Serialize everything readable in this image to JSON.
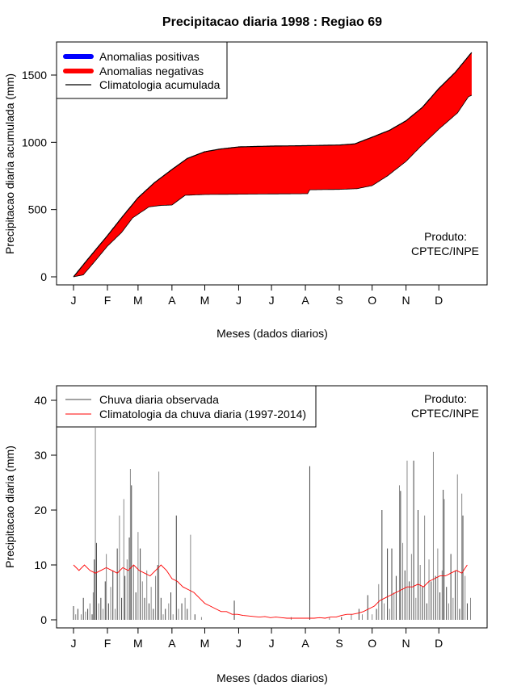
{
  "colors": {
    "anomaly_positive": "#0000ff",
    "anomaly_negative": "#ff0000",
    "climatology_line": "#000000",
    "observed_bars": "#444444",
    "climatology_daily": "#ff0000"
  },
  "chart_data": [
    {
      "type": "area",
      "title": "Precipitacao diaria 1998 : Regiao 69",
      "xlabel": "Meses (dados diarios)",
      "ylabel": "Precipitacao diaria acumulada (mm)",
      "xlim": [
        1,
        365
      ],
      "ylim": [
        0,
        1700
      ],
      "month_labels": [
        "J",
        "F",
        "M",
        "A",
        "M",
        "J",
        "J",
        "A",
        "S",
        "O",
        "N",
        "D"
      ],
      "month_days": [
        1,
        32,
        60,
        91,
        121,
        152,
        182,
        213,
        244,
        274,
        305,
        335
      ],
      "yticks": [
        0,
        500,
        1000,
        1500
      ],
      "ytick_labels": [
        "0",
        "500",
        "1000",
        "1500"
      ],
      "legend": {
        "position": "top-left",
        "entries": [
          "Anomalias positivas",
          "Anomalias negativas",
          "Climatologia acumulada"
        ]
      },
      "annotation": [
        "Produto:",
        "CPTEC/INPE"
      ],
      "climatology_cumulative": {
        "day": [
          1,
          15,
          32,
          46,
          60,
          75,
          91,
          105,
          121,
          135,
          152,
          182,
          213,
          244,
          258,
          274,
          290,
          305,
          320,
          335,
          350,
          365
        ],
        "mm": [
          0,
          140,
          306,
          450,
          588,
          700,
          798,
          880,
          930,
          950,
          966,
          972,
          975,
          980,
          988,
          1038,
          1090,
          1160,
          1260,
          1400,
          1520,
          1668
        ]
      },
      "observed_cumulative": {
        "day": [
          1,
          10,
          21,
          32,
          45,
          55,
          70,
          80,
          91,
          103,
          121,
          150,
          180,
          215,
          217,
          244,
          260,
          274,
          288,
          305,
          318,
          335,
          352,
          362,
          365
        ],
        "mm": [
          0,
          15,
          120,
          228,
          330,
          438,
          520,
          530,
          534,
          606,
          612,
          614,
          616,
          618,
          647,
          650,
          655,
          678,
          750,
          858,
          966,
          1098,
          1218,
          1338,
          1350
        ]
      }
    },
    {
      "type": "bar",
      "xlabel": "Meses (dados diarios)",
      "ylabel": "Precipitacao diaria (mm)",
      "xlim": [
        1,
        365
      ],
      "ylim": [
        0,
        40
      ],
      "yticks": [
        0,
        10,
        20,
        30,
        40
      ],
      "ytick_labels": [
        "0",
        "10",
        "20",
        "30",
        "40"
      ],
      "month_labels": [
        "J",
        "F",
        "M",
        "A",
        "M",
        "J",
        "J",
        "A",
        "S",
        "O",
        "N",
        "D"
      ],
      "month_days": [
        1,
        32,
        60,
        91,
        121,
        152,
        182,
        213,
        244,
        274,
        305,
        335
      ],
      "legend": {
        "position": "top-left",
        "entries": [
          "Chuva diaria observada",
          "Climatologia da chuva diaria (1997-2014)"
        ]
      },
      "annotation": [
        "Produto:",
        "CPTEC/INPE"
      ],
      "observed_daily": [
        [
          1,
          2.5
        ],
        [
          3,
          1
        ],
        [
          5,
          2
        ],
        [
          8,
          1
        ],
        [
          10,
          4
        ],
        [
          12,
          1.5
        ],
        [
          14,
          2
        ],
        [
          16,
          3
        ],
        [
          18,
          1
        ],
        [
          19,
          5
        ],
        [
          20,
          11
        ],
        [
          21,
          35
        ],
        [
          22,
          14
        ],
        [
          24,
          3
        ],
        [
          26,
          4
        ],
        [
          28,
          2
        ],
        [
          30,
          7
        ],
        [
          31,
          12
        ],
        [
          33,
          3
        ],
        [
          35,
          6
        ],
        [
          37,
          9
        ],
        [
          39,
          2
        ],
        [
          41,
          13
        ],
        [
          43,
          19
        ],
        [
          45,
          4
        ],
        [
          47,
          22
        ],
        [
          48,
          8
        ],
        [
          50,
          11
        ],
        [
          52,
          15
        ],
        [
          53,
          27.5
        ],
        [
          54,
          24.5
        ],
        [
          56,
          10
        ],
        [
          58,
          5
        ],
        [
          60,
          16
        ],
        [
          62,
          13
        ],
        [
          64,
          7
        ],
        [
          66,
          4
        ],
        [
          68,
          9
        ],
        [
          70,
          3
        ],
        [
          72,
          6
        ],
        [
          74,
          2
        ],
        [
          76,
          8
        ],
        [
          78,
          10
        ],
        [
          79,
          27
        ],
        [
          81,
          4
        ],
        [
          83,
          1
        ],
        [
          85,
          2
        ],
        [
          88,
          3
        ],
        [
          90,
          5
        ],
        [
          92,
          1
        ],
        [
          95,
          19
        ],
        [
          97,
          2
        ],
        [
          100,
          3
        ],
        [
          103,
          4
        ],
        [
          105,
          2
        ],
        [
          108,
          15.5
        ],
        [
          112,
          1
        ],
        [
          118,
          0.5
        ],
        [
          148,
          3.5
        ],
        [
          200,
          0.5
        ],
        [
          217,
          28
        ],
        [
          235,
          0.5
        ],
        [
          246,
          0.5
        ],
        [
          255,
          1
        ],
        [
          262,
          2
        ],
        [
          265,
          1
        ],
        [
          270,
          4.5
        ],
        [
          274,
          1
        ],
        [
          278,
          2
        ],
        [
          280,
          6.5
        ],
        [
          283,
          20
        ],
        [
          285,
          3
        ],
        [
          288,
          13
        ],
        [
          290,
          2
        ],
        [
          292,
          13
        ],
        [
          294,
          5
        ],
        [
          296,
          8
        ],
        [
          299,
          24.5
        ],
        [
          300,
          23.5
        ],
        [
          302,
          14
        ],
        [
          304,
          9
        ],
        [
          306,
          29
        ],
        [
          308,
          7
        ],
        [
          310,
          12
        ],
        [
          312,
          29
        ],
        [
          314,
          4
        ],
        [
          316,
          20
        ],
        [
          318,
          10
        ],
        [
          320,
          6
        ],
        [
          322,
          19
        ],
        [
          324,
          3
        ],
        [
          326,
          11
        ],
        [
          328,
          7
        ],
        [
          330,
          30.6
        ],
        [
          332,
          8
        ],
        [
          334,
          13
        ],
        [
          336,
          5
        ],
        [
          338,
          9
        ],
        [
          339,
          23.7
        ],
        [
          340,
          22
        ],
        [
          342,
          6
        ],
        [
          344,
          3
        ],
        [
          346,
          12
        ],
        [
          348,
          4
        ],
        [
          350,
          9
        ],
        [
          352,
          26.5
        ],
        [
          354,
          2
        ],
        [
          356,
          23
        ],
        [
          357,
          19
        ],
        [
          359,
          8
        ],
        [
          361,
          3
        ],
        [
          364,
          4
        ]
      ],
      "climatology_daily": {
        "day_start": 1,
        "step": 5,
        "mm": [
          10,
          9,
          10,
          9,
          8.5,
          9,
          9.5,
          9,
          8.5,
          9.5,
          9,
          10,
          9,
          8.5,
          8,
          9,
          10,
          9,
          7.5,
          7,
          6,
          5.5,
          5,
          4,
          3,
          2.5,
          2,
          1.5,
          1.5,
          1,
          1,
          0.8,
          0.7,
          0.6,
          0.5,
          0.6,
          0.4,
          0.5,
          0.4,
          0.3,
          0.3,
          0.3,
          0.3,
          0.3,
          0.3,
          0.4,
          0.3,
          0.5,
          0.5,
          0.8,
          1,
          1,
          1.2,
          1.5,
          2,
          2.5,
          3.5,
          4,
          4.5,
          5,
          5.5,
          6,
          6,
          6.5,
          6,
          7,
          7.5,
          8,
          8,
          8.5,
          9,
          8.5,
          10
        ]
      }
    }
  ]
}
